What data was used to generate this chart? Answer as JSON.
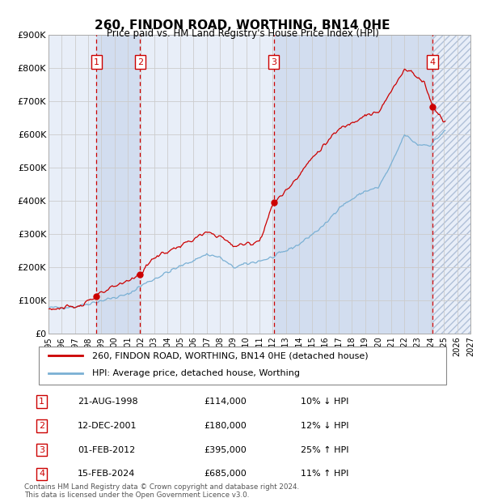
{
  "title": "260, FINDON ROAD, WORTHING, BN14 0HE",
  "subtitle": "Price paid vs. HM Land Registry's House Price Index (HPI)",
  "xlim": [
    1995,
    2027
  ],
  "ylim": [
    0,
    900000
  ],
  "yticks": [
    0,
    100000,
    200000,
    300000,
    400000,
    500000,
    600000,
    700000,
    800000,
    900000
  ],
  "ytick_labels": [
    "£0",
    "£100K",
    "£200K",
    "£300K",
    "£400K",
    "£500K",
    "£600K",
    "£700K",
    "£800K",
    "£900K"
  ],
  "xticks": [
    1995,
    1996,
    1997,
    1998,
    1999,
    2000,
    2001,
    2002,
    2003,
    2004,
    2005,
    2006,
    2007,
    2008,
    2009,
    2010,
    2011,
    2012,
    2013,
    2014,
    2015,
    2016,
    2017,
    2018,
    2019,
    2020,
    2021,
    2022,
    2023,
    2024,
    2025,
    2026,
    2027
  ],
  "transactions": [
    {
      "num": 1,
      "year": 1998.64,
      "price": 114000,
      "label": "21-AUG-1998",
      "amount": "£114,000",
      "hpi_str": "10% ↓ HPI"
    },
    {
      "num": 2,
      "year": 2001.95,
      "price": 180000,
      "label": "12-DEC-2001",
      "amount": "£180,000",
      "hpi_str": "12% ↓ HPI"
    },
    {
      "num": 3,
      "year": 2012.08,
      "price": 395000,
      "label": "01-FEB-2012",
      "amount": "£395,000",
      "hpi_str": "25% ↑ HPI"
    },
    {
      "num": 4,
      "year": 2024.12,
      "price": 685000,
      "label": "15-FEB-2024",
      "amount": "£685,000",
      "hpi_str": "11% ↑ HPI"
    }
  ],
  "legend_entries": [
    {
      "label": "260, FINDON ROAD, WORTHING, BN14 0HE (detached house)",
      "color": "#cc0000"
    },
    {
      "label": "HPI: Average price, detached house, Worthing",
      "color": "#7ab0d4"
    }
  ],
  "footnote": "Contains HM Land Registry data © Crown copyright and database right 2024.\nThis data is licensed under the Open Government Licence v3.0.",
  "bg_color": "#ffffff",
  "plot_bg": "#e8eef8",
  "grid_color": "#cccccc",
  "shade_color": "#d0dcee",
  "hatch_color": "#b0c0d8"
}
